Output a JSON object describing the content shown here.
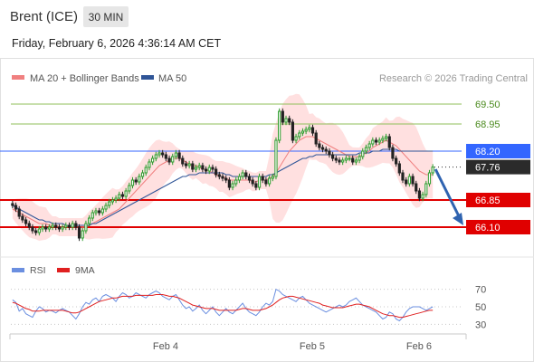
{
  "header": {
    "instrument": "Brent (ICE)",
    "timeframe": "30 MIN",
    "datetime": "Friday, February 6, 2026 4:36:14 AM CET"
  },
  "legend": {
    "ma20": "MA 20 + Bollinger Bands",
    "ma50": "MA 50",
    "credit": "Research © 2026 Trading Central",
    "rsi": "RSI",
    "rsi_ma": "9MA"
  },
  "colors": {
    "ma20": "#f08080",
    "ma50": "#2f5597",
    "resistance": "#8fbf5a",
    "pivot": "#3366ff",
    "support": "#e00000",
    "last": "#2b2b2b",
    "bands": "#ffd6d6",
    "bull": "#2c9c2c",
    "bear": "#222222",
    "rsi": "#6b8fe0",
    "rsi_ma": "#e02020"
  },
  "chart_data": [
    {
      "type": "candlestick",
      "title": "Brent (ICE) 30 MIN",
      "ylim": [
        65.5,
        70.0
      ],
      "x_ticks": [
        "Feb 4",
        "Feb 5",
        "Feb 6"
      ],
      "levels": [
        {
          "label": "69.50",
          "value": 69.5,
          "kind": "resistance"
        },
        {
          "label": "68.95",
          "value": 68.95,
          "kind": "resistance"
        },
        {
          "label": "68.20",
          "value": 68.2,
          "kind": "pivot"
        },
        {
          "label": "67.76",
          "value": 67.76,
          "kind": "last"
        },
        {
          "label": "66.85",
          "value": 66.85,
          "kind": "support"
        },
        {
          "label": "66.10",
          "value": 66.1,
          "kind": "support"
        }
      ],
      "forecast_arrow": {
        "from": 67.7,
        "to": 66.1,
        "direction": "down"
      },
      "closes": [
        66.7,
        66.6,
        66.4,
        66.3,
        66.2,
        66.1,
        66.0,
        65.95,
        66.05,
        66.1,
        66.05,
        66.1,
        66.15,
        66.1,
        66.05,
        66.1,
        66.15,
        66.1,
        66.2,
        66.1,
        65.8,
        66.0,
        66.2,
        66.35,
        66.5,
        66.55,
        66.5,
        66.6,
        66.7,
        66.8,
        66.85,
        66.9,
        67.0,
        66.95,
        67.1,
        67.25,
        67.4,
        67.35,
        67.5,
        67.6,
        67.75,
        67.9,
        68.0,
        68.1,
        68.15,
        68.1,
        68.0,
        67.9,
        68.05,
        68.15,
        68.0,
        67.85,
        67.8,
        67.85,
        67.7,
        67.75,
        67.8,
        67.7,
        67.65,
        67.75,
        67.7,
        67.55,
        67.5,
        67.45,
        67.4,
        67.2,
        67.3,
        67.4,
        67.5,
        67.6,
        67.5,
        67.4,
        67.3,
        67.2,
        67.5,
        67.4,
        67.3,
        67.45,
        67.5,
        68.5,
        69.3,
        69.0,
        69.1,
        69.0,
        68.5,
        68.6,
        68.7,
        68.75,
        68.8,
        68.85,
        68.7,
        68.4,
        68.3,
        68.25,
        68.2,
        68.1,
        68.0,
        67.95,
        67.9,
        67.95,
        68.0,
        68.0,
        67.9,
        67.95,
        68.05,
        68.2,
        68.3,
        68.4,
        68.5,
        68.45,
        68.5,
        68.55,
        68.6,
        68.3,
        68.0,
        67.85,
        67.6,
        67.4,
        67.3,
        67.5,
        67.3,
        67.1,
        66.9,
        67.0,
        67.3,
        67.6,
        67.76
      ],
      "ma20": [
        66.6,
        66.55,
        66.5,
        66.45,
        66.4,
        66.35,
        66.3,
        66.25,
        66.2,
        66.2,
        66.2,
        66.15,
        66.15,
        66.15,
        66.1,
        66.1,
        66.1,
        66.1,
        66.1,
        66.1,
        66.1,
        66.1,
        66.1,
        66.15,
        66.2,
        66.25,
        66.3,
        66.35,
        66.4,
        66.45,
        66.5,
        66.55,
        66.6,
        66.7,
        66.8,
        66.9,
        67.0,
        67.1,
        67.2,
        67.3,
        67.4,
        67.5,
        67.6,
        67.7,
        67.8,
        67.85,
        67.9,
        67.95,
        68.0,
        68.0,
        68.0,
        67.95,
        67.9,
        67.85,
        67.8,
        67.8,
        67.75,
        67.7,
        67.7,
        67.65,
        67.6,
        67.55,
        67.5,
        67.5,
        67.45,
        67.4,
        67.4,
        67.4,
        67.4,
        67.4,
        67.4,
        67.4,
        67.35,
        67.35,
        67.4,
        67.4,
        67.4,
        67.45,
        67.5,
        67.6,
        67.75,
        67.9,
        68.05,
        68.2,
        68.3,
        68.4,
        68.5,
        68.55,
        68.6,
        68.6,
        68.6,
        68.55,
        68.5,
        68.45,
        68.4,
        68.35,
        68.3,
        68.25,
        68.2,
        68.15,
        68.1,
        68.05,
        68.05,
        68.05,
        68.05,
        68.1,
        68.15,
        68.2,
        68.3,
        68.35,
        68.4,
        68.45,
        68.5,
        68.45,
        68.4,
        68.35,
        68.25,
        68.15,
        68.05,
        67.95,
        67.85,
        67.75,
        67.65,
        67.6,
        67.55,
        67.55,
        67.55
      ],
      "ma50": [
        66.7,
        66.65,
        66.6,
        66.55,
        66.5,
        66.45,
        66.4,
        66.35,
        66.3,
        66.3,
        66.25,
        66.25,
        66.2,
        66.2,
        66.2,
        66.2,
        66.15,
        66.15,
        66.15,
        66.15,
        66.15,
        66.15,
        66.15,
        66.15,
        66.2,
        66.2,
        66.25,
        66.3,
        66.35,
        66.4,
        66.45,
        66.5,
        66.55,
        66.6,
        66.65,
        66.7,
        66.75,
        66.8,
        66.85,
        66.9,
        66.95,
        67.0,
        67.05,
        67.1,
        67.15,
        67.2,
        67.25,
        67.3,
        67.35,
        67.4,
        67.45,
        67.5,
        67.5,
        67.55,
        67.55,
        67.55,
        67.6,
        67.6,
        67.6,
        67.6,
        67.6,
        67.6,
        67.6,
        67.6,
        67.55,
        67.55,
        67.5,
        67.5,
        67.5,
        67.5,
        67.5,
        67.5,
        67.5,
        67.5,
        67.5,
        67.5,
        67.5,
        67.55,
        67.55,
        67.6,
        67.65,
        67.7,
        67.75,
        67.8,
        67.85,
        67.9,
        67.95,
        68.0,
        68.0,
        68.05,
        68.05,
        68.1,
        68.1,
        68.1,
        68.1,
        68.1,
        68.1,
        68.1,
        68.1,
        68.1,
        68.1,
        68.1,
        68.1,
        68.1,
        68.15,
        68.15,
        68.15,
        68.15,
        68.2,
        68.2,
        68.2,
        68.25,
        68.25,
        68.25,
        68.25,
        68.25,
        68.2,
        68.2,
        68.2,
        68.2,
        68.2,
        68.2,
        68.2,
        68.2,
        68.2,
        68.2,
        68.2
      ]
    },
    {
      "type": "line",
      "title": "RSI",
      "ylim": [
        20,
        80
      ],
      "y_ticks": [
        70,
        50,
        30
      ],
      "series": [
        {
          "name": "RSI",
          "values": [
            58,
            55,
            45,
            48,
            42,
            40,
            38,
            45,
            50,
            48,
            44,
            46,
            45,
            43,
            46,
            48,
            46,
            44,
            40,
            36,
            42,
            50,
            55,
            53,
            58,
            60,
            56,
            62,
            64,
            62,
            60,
            56,
            62,
            66,
            64,
            60,
            62,
            66,
            64,
            62,
            60,
            64,
            66,
            68,
            66,
            62,
            60,
            58,
            62,
            64,
            58,
            52,
            48,
            50,
            45,
            48,
            52,
            46,
            42,
            46,
            50,
            44,
            40,
            44,
            48,
            44,
            42,
            46,
            50,
            54,
            48,
            44,
            42,
            40,
            44,
            50,
            54,
            52,
            56,
            70,
            68,
            64,
            62,
            60,
            58,
            56,
            60,
            62,
            58,
            54,
            52,
            50,
            48,
            46,
            44,
            46,
            48,
            50,
            52,
            50,
            52,
            56,
            58,
            60,
            56,
            52,
            50,
            48,
            46,
            44,
            40,
            36,
            38,
            44,
            42,
            36,
            34,
            38,
            44,
            48,
            50,
            50,
            50,
            48,
            46,
            48,
            50
          ]
        },
        {
          "name": "9MA",
          "values": [
            55,
            54,
            52,
            50,
            48,
            47,
            45,
            45,
            45,
            46,
            46,
            46,
            46,
            46,
            46,
            46,
            45,
            44,
            43,
            43,
            44,
            46,
            48,
            50,
            52,
            54,
            56,
            57,
            58,
            59,
            60,
            60,
            61,
            62,
            62,
            62,
            62,
            63,
            63,
            63,
            63,
            63,
            63,
            64,
            64,
            64,
            63,
            62,
            62,
            61,
            60,
            58,
            56,
            54,
            52,
            51,
            50,
            49,
            48,
            48,
            48,
            47,
            46,
            46,
            46,
            46,
            46,
            46,
            47,
            48,
            48,
            47,
            46,
            46,
            46,
            47,
            48,
            50,
            52,
            55,
            58,
            60,
            61,
            62,
            62,
            61,
            60,
            59,
            58,
            57,
            56,
            55,
            54,
            52,
            51,
            50,
            49,
            49,
            49,
            49,
            50,
            51,
            52,
            53,
            53,
            52,
            51,
            50,
            48,
            46,
            44,
            42,
            41,
            40,
            40,
            39,
            38,
            38,
            39,
            40,
            41,
            42,
            43,
            44,
            45,
            46,
            46
          ]
        }
      ]
    }
  ]
}
